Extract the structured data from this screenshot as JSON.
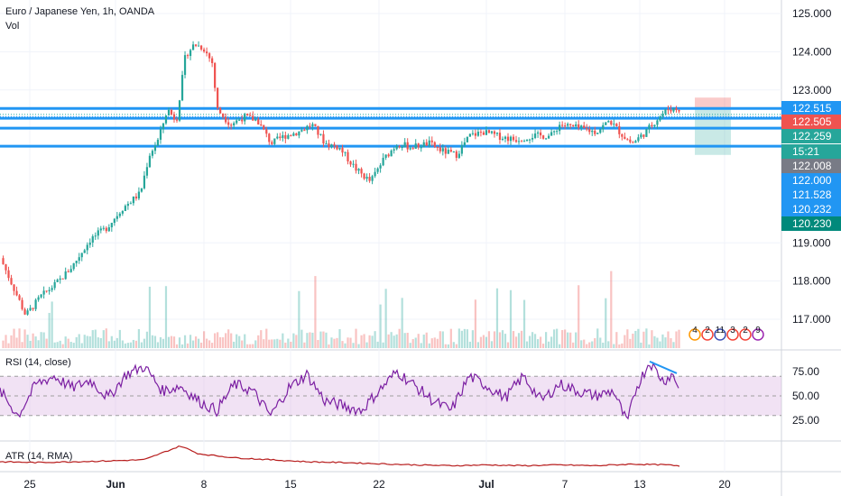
{
  "header": {
    "symbol": "Euro / Japanese Yen, 1h, OANDA",
    "vol_label": "Vol"
  },
  "colors": {
    "up": "#26a69a",
    "down": "#ef5350",
    "level_line": "#2196f3",
    "rsi": "#7b1fa2",
    "rsi_band": "#e1bee7",
    "atr": "#b71c1c",
    "grid": "#f0f3fa",
    "axis_text": "#131722"
  },
  "chart_data": [
    {
      "type": "candlestick",
      "title": "Euro / Japanese Yen, 1h, OANDA",
      "price_axis_ticks": [
        "125.000",
        "124.000",
        "123.000",
        "122.000",
        "119.000",
        "118.000",
        "117.000"
      ],
      "ylim": [
        116.6,
        125.25
      ],
      "x_ticks": [
        "25",
        "Jun",
        "8",
        "15",
        "22",
        "Jul",
        "7",
        "13",
        "20"
      ],
      "price_path_key_points": [
        [
          0,
          118.6
        ],
        [
          15,
          117.8
        ],
        [
          28,
          117.1
        ],
        [
          45,
          117.6
        ],
        [
          65,
          118.0
        ],
        [
          80,
          118.4
        ],
        [
          100,
          119.1
        ],
        [
          118,
          119.4
        ],
        [
          135,
          119.9
        ],
        [
          155,
          120.3
        ],
        [
          165,
          121.3
        ],
        [
          175,
          121.7
        ],
        [
          185,
          122.5
        ],
        [
          195,
          122.2
        ],
        [
          205,
          123.9
        ],
        [
          215,
          124.2
        ],
        [
          225,
          124.1
        ],
        [
          235,
          123.7
        ],
        [
          240,
          122.5
        ],
        [
          255,
          122.1
        ],
        [
          270,
          122.3
        ],
        [
          285,
          122.2
        ],
        [
          300,
          121.6
        ],
        [
          315,
          121.8
        ],
        [
          330,
          121.9
        ],
        [
          345,
          122.1
        ],
        [
          360,
          121.6
        ],
        [
          375,
          121.5
        ],
        [
          395,
          120.9
        ],
        [
          410,
          120.6
        ],
        [
          425,
          121.2
        ],
        [
          440,
          121.6
        ],
        [
          455,
          121.5
        ],
        [
          475,
          121.6
        ],
        [
          490,
          121.4
        ],
        [
          505,
          121.3
        ],
        [
          520,
          121.8
        ],
        [
          535,
          121.9
        ],
        [
          550,
          121.8
        ],
        [
          570,
          121.7
        ],
        [
          590,
          121.8
        ],
        [
          610,
          121.8
        ],
        [
          620,
          122.1
        ],
        [
          640,
          122.0
        ],
        [
          660,
          121.9
        ],
        [
          675,
          122.2
        ],
        [
          690,
          121.8
        ],
        [
          700,
          121.6
        ],
        [
          715,
          121.9
        ],
        [
          730,
          122.3
        ],
        [
          740,
          122.5
        ],
        [
          750,
          122.5
        ]
      ],
      "levels": [
        {
          "label": "122.515",
          "value": 122.515,
          "tag_color": "#2196f3"
        },
        {
          "label": "122.505",
          "value": 122.505,
          "tag_color": "#ef5350"
        },
        {
          "label": "122.259",
          "value": 122.259,
          "tag_color": "#26a69a"
        },
        {
          "label": "15:21",
          "value": 122.06,
          "tag_color": "#26a69a"
        },
        {
          "label": "122.008",
          "value": 122.008,
          "tag_color": "#787b86"
        },
        {
          "label": "122.000",
          "value": 122.0,
          "tag_color": "#2196f3"
        },
        {
          "label": "121.528",
          "value": 121.528,
          "tag_color": "#2196f3"
        },
        {
          "label": "120.232",
          "value": 120.232,
          "tag_color": "#2196f3"
        },
        {
          "label": "120.230",
          "value": 120.23,
          "tag_color": "#00897b"
        }
      ],
      "position_box": {
        "entry": 122.505,
        "stop": 122.8,
        "target": 121.3
      },
      "event_markers": [
        "4",
        "2",
        "11",
        "3",
        "2",
        "9"
      ]
    },
    {
      "type": "line",
      "title": "RSI (14, close)",
      "ticks": [
        "75.00",
        "50.00",
        "25.00"
      ],
      "ylim": [
        5,
        95
      ],
      "band": [
        30,
        70
      ],
      "values_key_points": [
        [
          0,
          55
        ],
        [
          20,
          30
        ],
        [
          40,
          62
        ],
        [
          60,
          70
        ],
        [
          80,
          58
        ],
        [
          100,
          66
        ],
        [
          120,
          48
        ],
        [
          140,
          72
        ],
        [
          160,
          80
        ],
        [
          180,
          55
        ],
        [
          200,
          60
        ],
        [
          220,
          45
        ],
        [
          240,
          35
        ],
        [
          260,
          62
        ],
        [
          280,
          55
        ],
        [
          300,
          30
        ],
        [
          320,
          58
        ],
        [
          340,
          72
        ],
        [
          360,
          45
        ],
        [
          380,
          40
        ],
        [
          400,
          35
        ],
        [
          420,
          55
        ],
        [
          440,
          75
        ],
        [
          460,
          60
        ],
        [
          480,
          45
        ],
        [
          500,
          35
        ],
        [
          520,
          70
        ],
        [
          540,
          60
        ],
        [
          560,
          48
        ],
        [
          580,
          70
        ],
        [
          600,
          45
        ],
        [
          620,
          62
        ],
        [
          640,
          55
        ],
        [
          660,
          50
        ],
        [
          680,
          55
        ],
        [
          695,
          22
        ],
        [
          705,
          58
        ],
        [
          720,
          85
        ],
        [
          735,
          65
        ],
        [
          745,
          72
        ],
        [
          752,
          60
        ]
      ],
      "divergence_line": {
        "from": [
          720,
          85
        ],
        "to": [
          750,
          73
        ]
      }
    },
    {
      "type": "line",
      "title": "ATR (14, RMA)",
      "values_key_points": [
        [
          0,
          0.5
        ],
        [
          40,
          0.48
        ],
        [
          80,
          0.5
        ],
        [
          120,
          0.52
        ],
        [
          160,
          0.55
        ],
        [
          200,
          0.9
        ],
        [
          220,
          0.7
        ],
        [
          260,
          0.6
        ],
        [
          300,
          0.55
        ],
        [
          340,
          0.5
        ],
        [
          380,
          0.48
        ],
        [
          420,
          0.45
        ],
        [
          460,
          0.42
        ],
        [
          500,
          0.4
        ],
        [
          540,
          0.42
        ],
        [
          580,
          0.4
        ],
        [
          620,
          0.42
        ],
        [
          660,
          0.4
        ],
        [
          700,
          0.44
        ],
        [
          740,
          0.42
        ],
        [
          755,
          0.38
        ]
      ]
    }
  ]
}
